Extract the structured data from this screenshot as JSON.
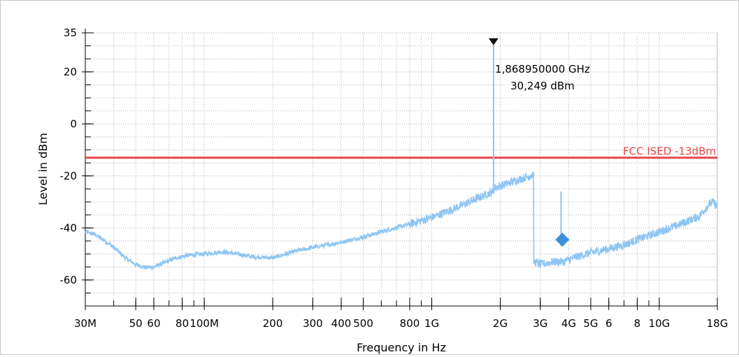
{
  "chart_data": {
    "type": "line",
    "xlabel": "Frequency in Hz",
    "ylabel": "Level in dBm",
    "x_scale": "log",
    "xlim_hz": [
      30000000,
      18000000000
    ],
    "ylim": [
      -70,
      35
    ],
    "y_ticks": [
      35,
      20,
      0,
      -20,
      -40,
      -60
    ],
    "x_tick_labels": [
      {
        "hz": 30000000,
        "label": "30M"
      },
      {
        "hz": 50000000,
        "label": "50"
      },
      {
        "hz": 60000000,
        "label": "60"
      },
      {
        "hz": 80000000,
        "label": "80"
      },
      {
        "hz": 100000000,
        "label": "100M"
      },
      {
        "hz": 200000000,
        "label": "200"
      },
      {
        "hz": 300000000,
        "label": "300"
      },
      {
        "hz": 400000000,
        "label": "400"
      },
      {
        "hz": 500000000,
        "label": "500"
      },
      {
        "hz": 800000000,
        "label": "800"
      },
      {
        "hz": 1000000000,
        "label": "1G"
      },
      {
        "hz": 2000000000,
        "label": "2G"
      },
      {
        "hz": 3000000000,
        "label": "3G"
      },
      {
        "hz": 4000000000,
        "label": "4G"
      },
      {
        "hz": 5000000000,
        "label": "5G"
      },
      {
        "hz": 6000000000,
        "label": "6"
      },
      {
        "hz": 8000000000,
        "label": "8"
      },
      {
        "hz": 10000000000,
        "label": "10G"
      },
      {
        "hz": 18000000000,
        "label": "18G"
      }
    ],
    "limit_line": {
      "label": "FCC ISED -13dBm",
      "level": -13,
      "color": "#e8474a"
    },
    "trace": {
      "color": "#8ec5f2",
      "points": [
        [
          30000000,
          -41.5
        ],
        [
          33000000,
          -42.5
        ],
        [
          36000000,
          -44.5
        ],
        [
          40000000,
          -47.5
        ],
        [
          45000000,
          -51.5
        ],
        [
          50000000,
          -54
        ],
        [
          55000000,
          -55.2
        ],
        [
          60000000,
          -55
        ],
        [
          66000000,
          -53.5
        ],
        [
          75000000,
          -51.5
        ],
        [
          85000000,
          -50.5
        ],
        [
          100000000,
          -50
        ],
        [
          120000000,
          -49.2
        ],
        [
          140000000,
          -50
        ],
        [
          160000000,
          -51
        ],
        [
          200000000,
          -51.5
        ],
        [
          250000000,
          -49
        ],
        [
          300000000,
          -47.5
        ],
        [
          400000000,
          -45.5
        ],
        [
          500000000,
          -43.5
        ],
        [
          600000000,
          -41.5
        ],
        [
          800000000,
          -38.5
        ],
        [
          1000000000,
          -36
        ],
        [
          1300000000,
          -32
        ],
        [
          1600000000,
          -28.5
        ],
        [
          1860000000,
          -26
        ],
        [
          1900000000,
          -24.5
        ],
        [
          2300000000,
          -22
        ],
        [
          2700000000,
          -20
        ],
        [
          2800000000,
          -19.5
        ],
        [
          2810000000,
          -53
        ],
        [
          3000000000,
          -54
        ],
        [
          3400000000,
          -53
        ],
        [
          3800000000,
          -53
        ],
        [
          4200000000,
          -51.5
        ],
        [
          5000000000,
          -49.5
        ],
        [
          6000000000,
          -48
        ],
        [
          7000000000,
          -46.5
        ],
        [
          8000000000,
          -44.5
        ],
        [
          10000000000,
          -41.5
        ],
        [
          12000000000,
          -39
        ],
        [
          15000000000,
          -35.5
        ],
        [
          16500000000,
          -31
        ],
        [
          17300000000,
          -30
        ],
        [
          18000000000,
          -32
        ]
      ],
      "spikes": [
        {
          "hz": 1868950000,
          "level": 30.249
        },
        {
          "hz": 3700000000,
          "level": -47
        }
      ]
    },
    "marker": {
      "hz": 1868950000,
      "level": 30.249,
      "freq_label": "1,868950000 GHz",
      "level_label": "30,249 dBm"
    },
    "diamond": {
      "hz": 3750000000,
      "level": -44.5,
      "color": "#3d8fd9"
    }
  }
}
